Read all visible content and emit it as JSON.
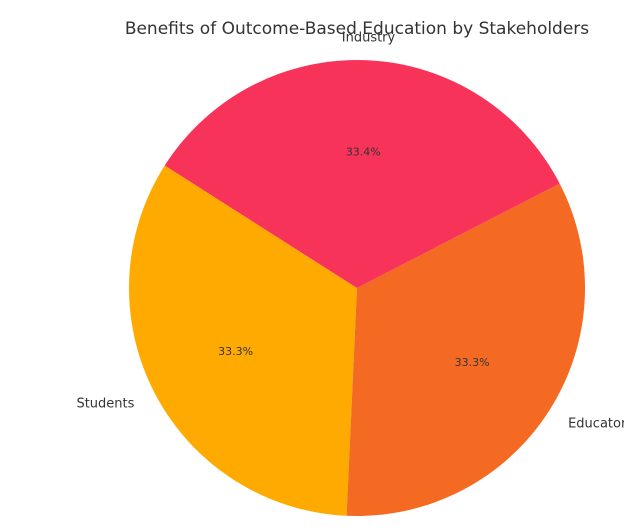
{
  "chart_data": {
    "type": "pie",
    "title": "Benefits of Outcome-Based Education by Stakeholders",
    "categories": [
      "Students",
      "Educators",
      "Industry"
    ],
    "values": [
      33.3,
      33.3,
      33.4
    ],
    "value_labels": [
      "33.3%",
      "33.3%",
      "33.4%"
    ],
    "colors": [
      "#ffaa00",
      "#f46a22",
      "#f8335a"
    ],
    "start_angle_deg": 147.5,
    "direction": "counterclockwise",
    "legend": "none"
  }
}
